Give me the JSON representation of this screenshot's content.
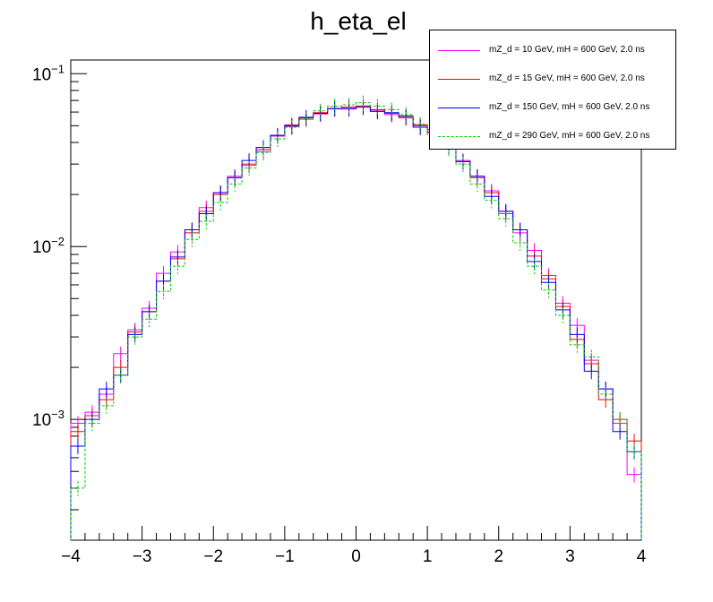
{
  "chart_data": {
    "type": "line",
    "title": "h_eta_el",
    "xlabel": "",
    "ylabel": "",
    "xlim": [
      -4,
      4
    ],
    "ylim": [
      0.0002,
      0.12
    ],
    "y_scale": "log",
    "x_ticks": [
      {
        "value": -4,
        "label": "−4"
      },
      {
        "value": -3,
        "label": "−3"
      },
      {
        "value": -2,
        "label": "−2"
      },
      {
        "value": -1,
        "label": "−1"
      },
      {
        "value": 0,
        "label": "0"
      },
      {
        "value": 1,
        "label": "1"
      },
      {
        "value": 2,
        "label": "2"
      },
      {
        "value": 3,
        "label": "3"
      },
      {
        "value": 4,
        "label": "4"
      }
    ],
    "y_ticks": [
      {
        "value": 0.001,
        "base": "10",
        "exp": "−3"
      },
      {
        "value": 0.01,
        "base": "10",
        "exp": "−2"
      },
      {
        "value": 0.1,
        "base": "10",
        "exp": "−1"
      }
    ],
    "bin_edges": [
      -4.0,
      -3.8,
      -3.6,
      -3.4,
      -3.2,
      -3.0,
      -2.8,
      -2.6,
      -2.4,
      -2.2,
      -2.0,
      -1.8,
      -1.6,
      -1.4,
      -1.2,
      -1.0,
      -0.8,
      -0.6,
      -0.4,
      -0.2,
      0.0,
      0.2,
      0.4,
      0.6,
      0.8,
      1.0,
      1.2,
      1.4,
      1.6,
      1.8,
      2.0,
      2.2,
      2.4,
      2.6,
      2.8,
      3.0,
      3.2,
      3.4,
      3.6,
      3.8,
      4.0
    ],
    "series": [
      {
        "name": "mZ_d = 10 GeV, mH = 600 GeV, 2.0 ns",
        "color": "#ff00ff",
        "dashed": false,
        "values": [
          0.00095,
          0.0011,
          0.0014,
          0.0024,
          0.0033,
          0.0044,
          0.007,
          0.0093,
          0.0125,
          0.0168,
          0.0205,
          0.0255,
          0.0295,
          0.0355,
          0.0435,
          0.0495,
          0.0545,
          0.0585,
          0.0625,
          0.0625,
          0.065,
          0.0615,
          0.058,
          0.0555,
          0.05,
          0.0455,
          0.0385,
          0.0315,
          0.0255,
          0.021,
          0.0155,
          0.012,
          0.0095,
          0.0068,
          0.0047,
          0.0035,
          0.0022,
          0.0015,
          0.00095,
          0.00048
        ]
      },
      {
        "name": "mZ_d = 15 GeV, mH = 600 GeV, 2.0 ns",
        "color": "#ff0000",
        "dashed": false,
        "values": [
          0.00085,
          0.00105,
          0.0013,
          0.002,
          0.0032,
          0.0042,
          0.0063,
          0.0085,
          0.012,
          0.016,
          0.02,
          0.025,
          0.03,
          0.0365,
          0.044,
          0.0505,
          0.0555,
          0.0595,
          0.063,
          0.064,
          0.065,
          0.062,
          0.059,
          0.056,
          0.0505,
          0.046,
          0.039,
          0.031,
          0.025,
          0.0205,
          0.016,
          0.0125,
          0.0088,
          0.0065,
          0.0045,
          0.0029,
          0.0021,
          0.0013,
          0.001,
          0.00075
        ]
      },
      {
        "name": "mZ_d = 150 GeV, mH = 600 GeV, 2.0 ns",
        "color": "#0000ff",
        "dashed": false,
        "values": [
          0.0007,
          0.001,
          0.0015,
          0.0018,
          0.0031,
          0.0042,
          0.0063,
          0.0087,
          0.0125,
          0.0155,
          0.0205,
          0.025,
          0.0315,
          0.0375,
          0.044,
          0.05,
          0.056,
          0.059,
          0.063,
          0.063,
          0.064,
          0.0605,
          0.0595,
          0.057,
          0.049,
          0.0475,
          0.038,
          0.031,
          0.0255,
          0.0195,
          0.016,
          0.0125,
          0.0082,
          0.0062,
          0.0043,
          0.0031,
          0.0019,
          0.0015,
          0.00085,
          0.00065
        ]
      },
      {
        "name": "mZ_d = 290 GeV, mH = 600 GeV, 2.0 ns",
        "color": "#00cc00",
        "dashed": true,
        "values": [
          0.0004,
          0.00095,
          0.0012,
          0.0018,
          0.003,
          0.0038,
          0.0055,
          0.0077,
          0.011,
          0.014,
          0.018,
          0.023,
          0.0285,
          0.035,
          0.042,
          0.049,
          0.055,
          0.061,
          0.065,
          0.066,
          0.068,
          0.065,
          0.062,
          0.058,
          0.051,
          0.044,
          0.037,
          0.03,
          0.023,
          0.0185,
          0.0145,
          0.0105,
          0.0077,
          0.0056,
          0.004,
          0.0027,
          0.0023,
          0.0014,
          0.001,
          0.00065
        ]
      }
    ]
  }
}
